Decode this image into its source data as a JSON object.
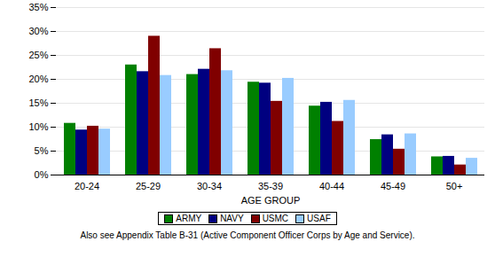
{
  "chart_data": {
    "type": "bar",
    "x_label": "AGE GROUP",
    "caption": "Also see Appendix Table B-31 (Active Component Officer Corps by Age and Service).",
    "categories": [
      "20-24",
      "25-29",
      "30-34",
      "35-39",
      "40-44",
      "45-49",
      "50+"
    ],
    "series": [
      {
        "name": "ARMY",
        "color": "#008000",
        "values": [
          10.8,
          23.0,
          21.0,
          19.4,
          14.4,
          7.4,
          3.8
        ]
      },
      {
        "name": "NAVY",
        "color": "#000080",
        "values": [
          9.4,
          21.6,
          22.1,
          19.2,
          15.2,
          8.4,
          3.9
        ]
      },
      {
        "name": "USMC",
        "color": "#800000",
        "values": [
          10.2,
          29.0,
          26.4,
          15.4,
          11.2,
          5.4,
          2.1
        ]
      },
      {
        "name": "USAF",
        "color": "#99ccff",
        "values": [
          9.6,
          20.8,
          21.8,
          20.2,
          15.6,
          8.6,
          3.5
        ]
      }
    ],
    "ylim": [
      0,
      35
    ],
    "yticks": [
      {
        "value": 0,
        "label": "0%"
      },
      {
        "value": 5,
        "label": "5%"
      },
      {
        "value": 10,
        "label": "10%"
      },
      {
        "value": 15,
        "label": "15%"
      },
      {
        "value": 20,
        "label": "20%"
      },
      {
        "value": 25,
        "label": "25%"
      },
      {
        "value": 30,
        "label": "30%"
      },
      {
        "value": 35,
        "label": "35%"
      }
    ],
    "grid": true,
    "legend": "bottom"
  }
}
